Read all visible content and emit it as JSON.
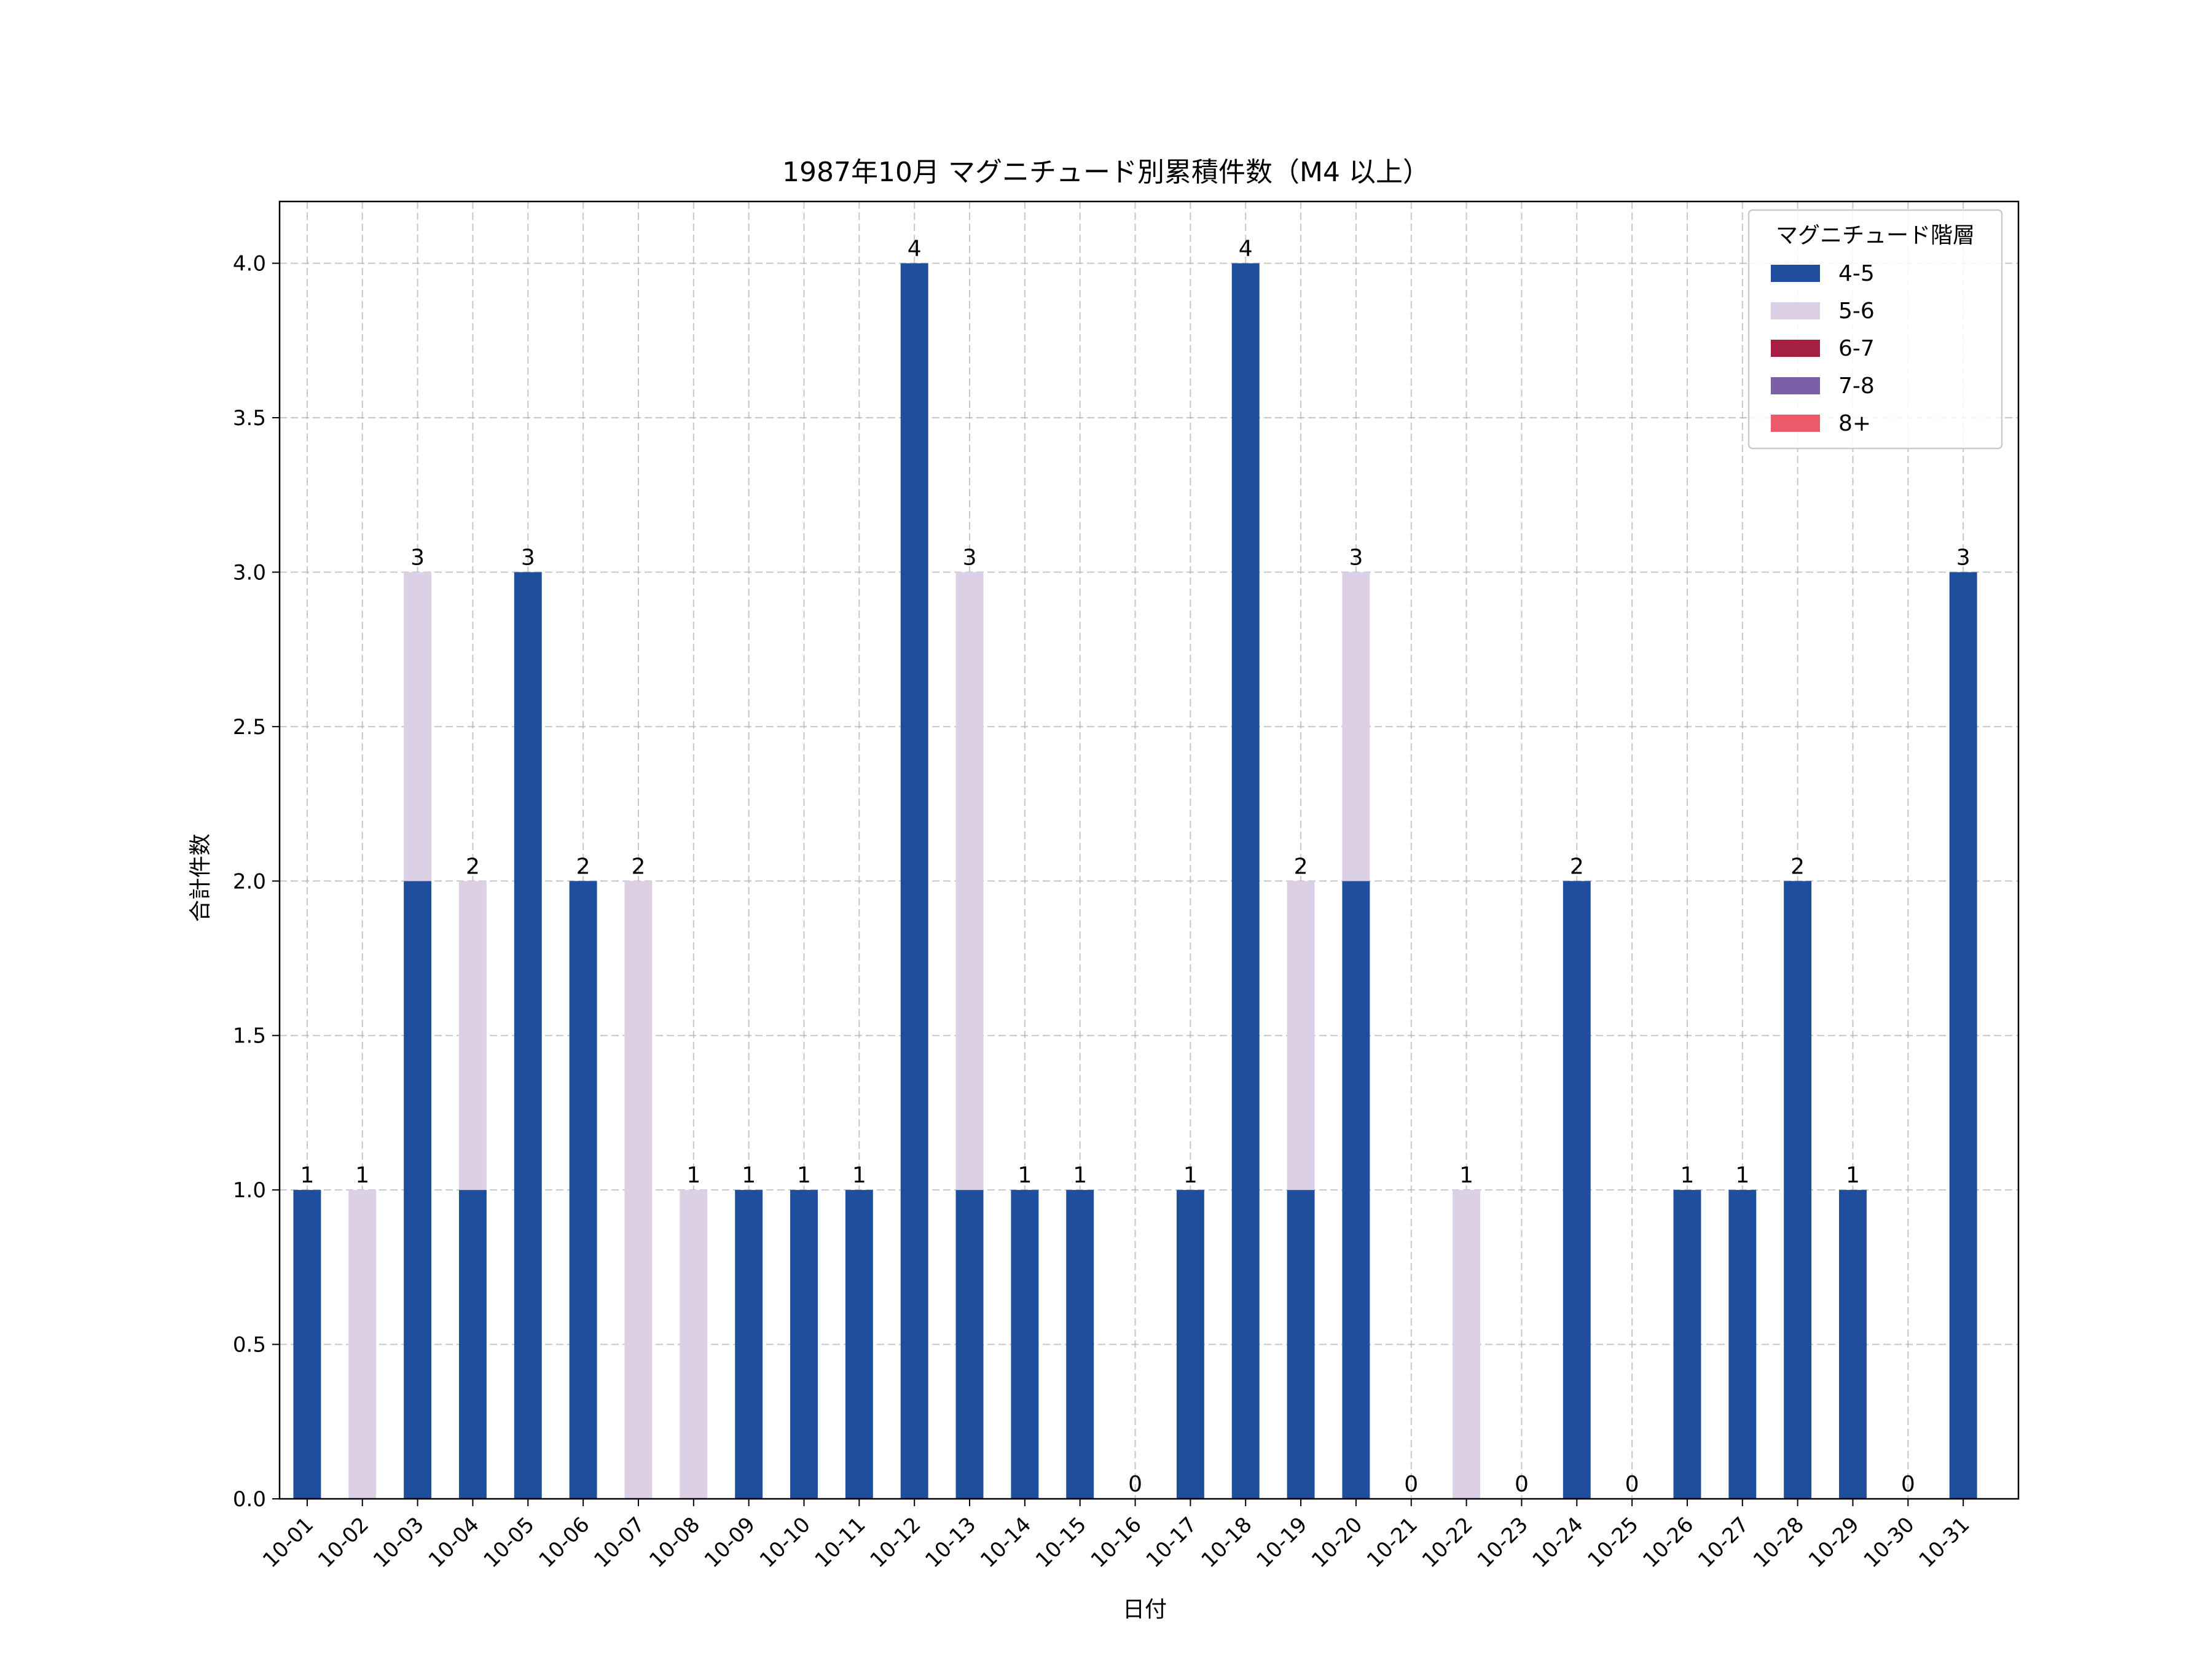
{
  "chart_data": {
    "type": "bar",
    "stacked": true,
    "title": "1987年10月 マグニチュード別累積件数（M4 以上）",
    "xlabel": "日付",
    "ylabel": "合計件数",
    "ylim": [
      0,
      4.2
    ],
    "yticks": [
      0.0,
      0.5,
      1.0,
      1.5,
      2.0,
      2.5,
      3.0,
      3.5,
      4.0
    ],
    "ytick_labels": [
      "0.0",
      "0.5",
      "1.0",
      "1.5",
      "2.0",
      "2.5",
      "3.0",
      "3.5",
      "4.0"
    ],
    "grid": true,
    "legend_title": "マグニチュード階層",
    "legend_position": "top-right",
    "categories": [
      "10-01",
      "10-02",
      "10-03",
      "10-04",
      "10-05",
      "10-06",
      "10-07",
      "10-08",
      "10-09",
      "10-10",
      "10-11",
      "10-12",
      "10-13",
      "10-14",
      "10-15",
      "10-16",
      "10-17",
      "10-18",
      "10-19",
      "10-20",
      "10-21",
      "10-22",
      "10-23",
      "10-24",
      "10-25",
      "10-26",
      "10-27",
      "10-28",
      "10-29",
      "10-30",
      "10-31"
    ],
    "series": [
      {
        "name": "4-5",
        "color": "#1f4e9c",
        "values": [
          1,
          0,
          2,
          1,
          3,
          2,
          0,
          0,
          1,
          1,
          1,
          4,
          1,
          1,
          1,
          0,
          1,
          4,
          1,
          2,
          0,
          0,
          0,
          2,
          0,
          1,
          1,
          2,
          1,
          0,
          3
        ]
      },
      {
        "name": "5-6",
        "color": "#dcd0e6",
        "values": [
          0,
          1,
          1,
          1,
          0,
          0,
          2,
          1,
          0,
          0,
          0,
          0,
          2,
          0,
          0,
          0,
          0,
          0,
          1,
          1,
          0,
          1,
          0,
          0,
          0,
          0,
          0,
          0,
          0,
          0,
          0
        ]
      },
      {
        "name": "6-7",
        "color": "#a51f45",
        "values": [
          0,
          0,
          0,
          0,
          0,
          0,
          0,
          0,
          0,
          0,
          0,
          0,
          0,
          0,
          0,
          0,
          0,
          0,
          0,
          0,
          0,
          0,
          0,
          0,
          0,
          0,
          0,
          0,
          0,
          0,
          0
        ]
      },
      {
        "name": "7-8",
        "color": "#7a5ea8",
        "values": [
          0,
          0,
          0,
          0,
          0,
          0,
          0,
          0,
          0,
          0,
          0,
          0,
          0,
          0,
          0,
          0,
          0,
          0,
          0,
          0,
          0,
          0,
          0,
          0,
          0,
          0,
          0,
          0,
          0,
          0,
          0
        ]
      },
      {
        "name": "8+",
        "color": "#ec5a6a",
        "values": [
          0,
          0,
          0,
          0,
          0,
          0,
          0,
          0,
          0,
          0,
          0,
          0,
          0,
          0,
          0,
          0,
          0,
          0,
          0,
          0,
          0,
          0,
          0,
          0,
          0,
          0,
          0,
          0,
          0,
          0,
          0
        ]
      }
    ],
    "totals": [
      1,
      1,
      3,
      2,
      3,
      2,
      2,
      1,
      1,
      1,
      1,
      4,
      3,
      1,
      1,
      0,
      1,
      4,
      2,
      3,
      0,
      1,
      0,
      2,
      0,
      1,
      1,
      2,
      1,
      0,
      3
    ]
  }
}
